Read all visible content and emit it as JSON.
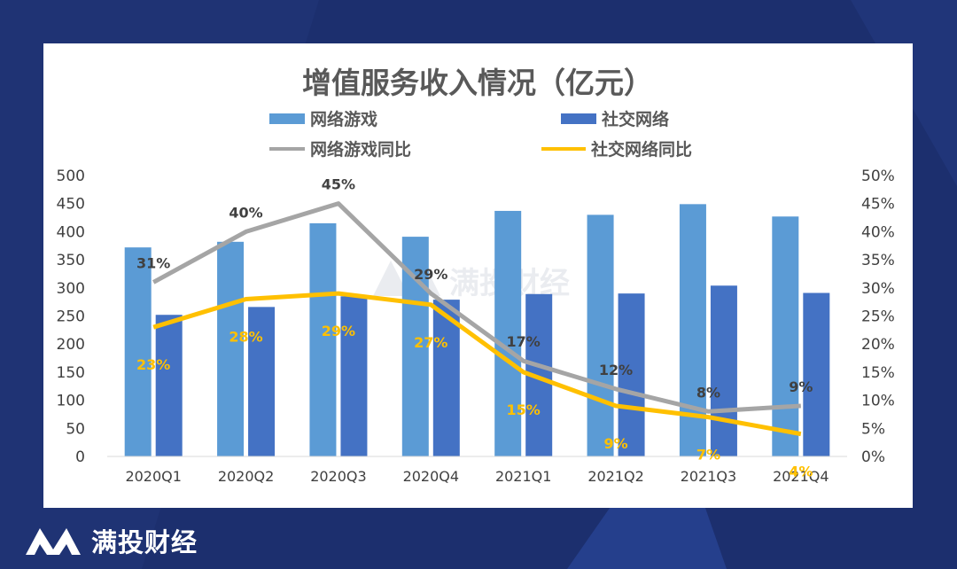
{
  "brand": {
    "name": "满投财经",
    "watermark": "满投财经"
  },
  "colors": {
    "background": "#1c2f6e",
    "games_bar": "#5b9bd5",
    "social_bar": "#4472c4",
    "games_line": "#a5a5a5",
    "social_line": "#ffc000"
  },
  "chart_data": {
    "type": "bar",
    "title": "增值服务收入情况（亿元）",
    "categories": [
      "2020Q1",
      "2020Q2",
      "2020Q3",
      "2020Q4",
      "2021Q1",
      "2021Q2",
      "2021Q3",
      "2021Q4"
    ],
    "series": [
      {
        "name": "网络游戏",
        "type": "bar",
        "axis": "left",
        "values": [
          372,
          382,
          415,
          391,
          437,
          430,
          449,
          427
        ]
      },
      {
        "name": "社交网络",
        "type": "bar",
        "axis": "left",
        "values": [
          252,
          266,
          285,
          279,
          289,
          290,
          304,
          291
        ]
      },
      {
        "name": "网络游戏同比",
        "type": "line",
        "axis": "right",
        "values": [
          31,
          40,
          45,
          29,
          17,
          12,
          8,
          9
        ],
        "labels": [
          "31%",
          "40%",
          "45%",
          "29%",
          "17%",
          "12%",
          "8%",
          "9%"
        ]
      },
      {
        "name": "社交网络同比",
        "type": "line",
        "axis": "right",
        "values": [
          23,
          28,
          29,
          27,
          15,
          9,
          7,
          4
        ],
        "labels": [
          "23%",
          "28%",
          "29%",
          "27%",
          "15%",
          "9%",
          "7%",
          "4%"
        ]
      }
    ],
    "y_left": {
      "min": 0,
      "max": 500,
      "ticks": [
        "0",
        "50",
        "100",
        "150",
        "200",
        "250",
        "300",
        "350",
        "400",
        "450",
        "500"
      ]
    },
    "y_right": {
      "min": 0,
      "max": 50,
      "ticks": [
        "0%",
        "5%",
        "10%",
        "15%",
        "20%",
        "25%",
        "30%",
        "35%",
        "40%",
        "45%",
        "50%"
      ]
    },
    "legend_position": "top",
    "grid": false
  }
}
